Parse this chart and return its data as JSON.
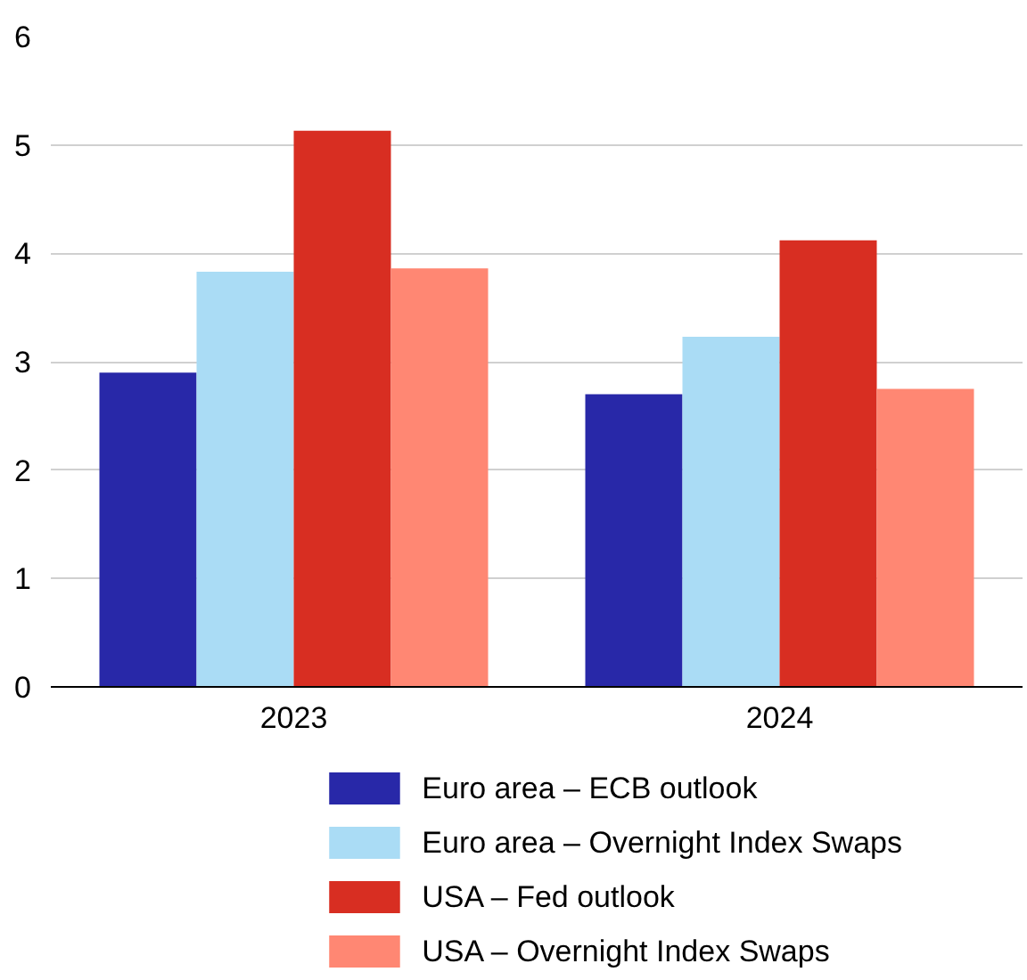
{
  "chart_data": {
    "type": "bar",
    "categories": [
      "2023",
      "2024"
    ],
    "series": [
      {
        "name": "Euro area – ECB outlook",
        "color": "#2828a8",
        "values": [
          2.9,
          2.7
        ]
      },
      {
        "name": "Euro area – Overnight Index Swaps",
        "color": "#aadcf5",
        "values": [
          3.83,
          3.23
        ]
      },
      {
        "name": "USA – Fed outlook",
        "color": "#d82e22",
        "values": [
          5.13,
          4.12
        ]
      },
      {
        "name": "USA – Overnight Index Swaps",
        "color": "#ff8773",
        "values": [
          3.86,
          2.75
        ]
      }
    ],
    "ylim": [
      0,
      6
    ],
    "yticks": [
      0,
      1,
      2,
      3,
      4,
      5,
      6
    ],
    "grid": "y",
    "legend": "bottom"
  }
}
